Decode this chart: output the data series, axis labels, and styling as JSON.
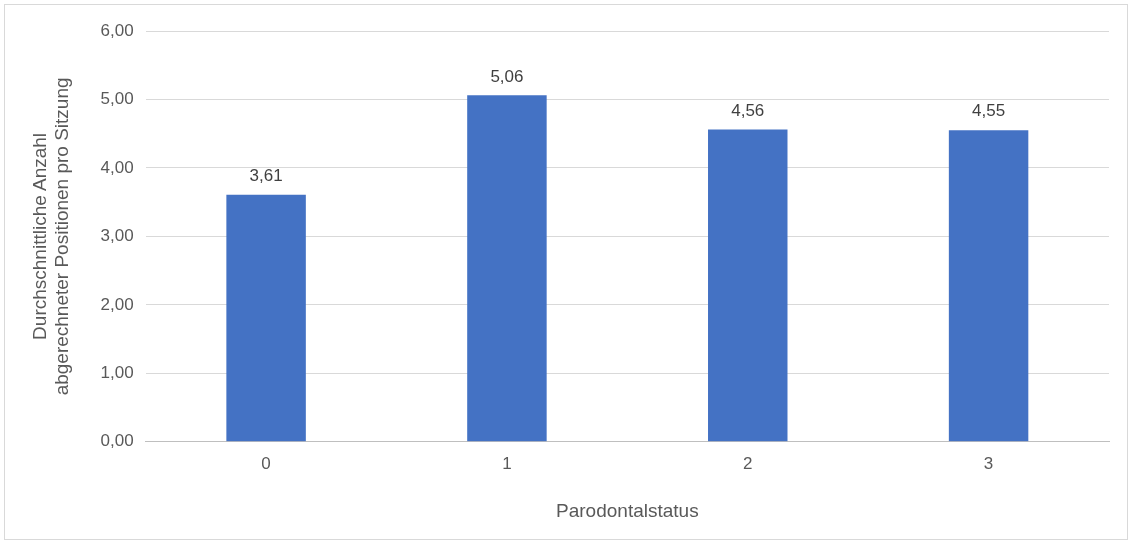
{
  "chart_data": {
    "type": "bar",
    "xlabel": "Parodontalstatus",
    "ylabel": "Durchschnittliche Anzahl\nabgerechneter Positionen pro Sitzung",
    "categories": [
      "0",
      "1",
      "2",
      "3"
    ],
    "values": [
      3.61,
      5.06,
      4.56,
      4.55
    ],
    "value_labels": [
      "3,61",
      "5,06",
      "4,56",
      "4,55"
    ],
    "color": "#4472c4",
    "ylim": [
      0,
      6
    ],
    "yticks": [
      {
        "value": 0,
        "label": "0,00"
      },
      {
        "value": 1,
        "label": "1,00"
      },
      {
        "value": 2,
        "label": "2,00"
      },
      {
        "value": 3,
        "label": "3,00"
      },
      {
        "value": 4,
        "label": "4,00"
      },
      {
        "value": 5,
        "label": "5,00"
      },
      {
        "value": 6,
        "label": "6,00"
      }
    ],
    "grid": "y",
    "legend": false
  }
}
